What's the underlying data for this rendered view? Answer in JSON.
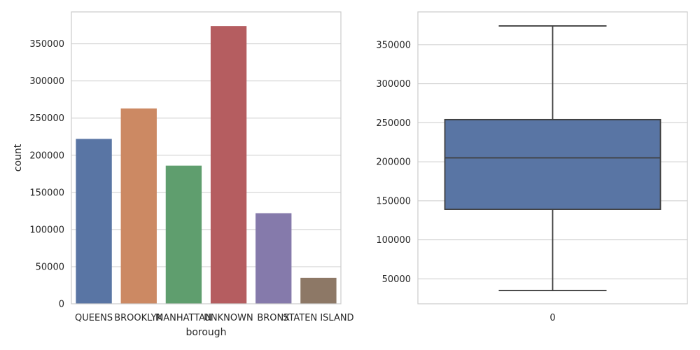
{
  "chart_data": [
    {
      "type": "bar",
      "categories": [
        "QUEENS",
        "BROOKLYN",
        "MANHATTAN",
        "UNKNOWN",
        "BRONX",
        "STATEN ISLAND"
      ],
      "values": [
        222000,
        263000,
        186000,
        374000,
        122000,
        35000
      ],
      "colors": [
        "#5975a4",
        "#cc8963",
        "#5f9e6e",
        "#b55d60",
        "#857aab",
        "#8d7866"
      ],
      "xlabel": "borough",
      "ylabel": "count",
      "ylim": [
        0,
        393000
      ],
      "yticks": [
        0,
        50000,
        100000,
        150000,
        200000,
        250000,
        300000,
        350000
      ],
      "grid": true
    },
    {
      "type": "box",
      "categories": [
        "0"
      ],
      "stats": {
        "whisker_low": 35000,
        "q1": 139000,
        "median": 205000,
        "q3": 254000,
        "whisker_high": 374000
      },
      "color": "#5975a4",
      "xlabel": "",
      "ylabel": "",
      "ylim": [
        18000,
        392000
      ],
      "yticks": [
        50000,
        100000,
        150000,
        200000,
        250000,
        300000,
        350000
      ],
      "grid": true
    }
  ]
}
